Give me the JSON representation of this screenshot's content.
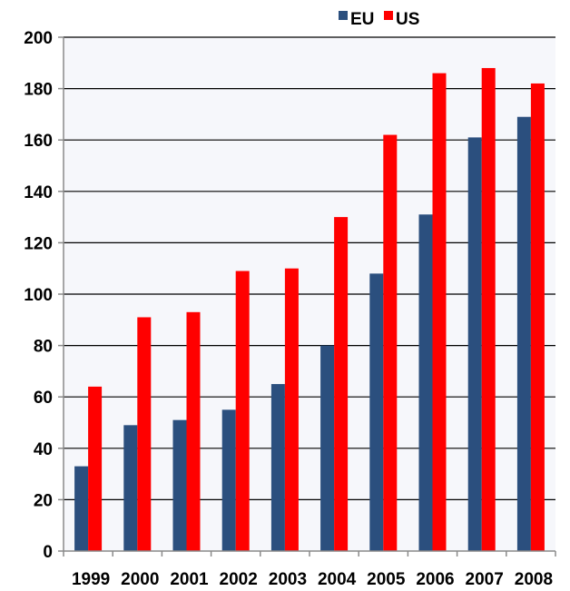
{
  "chart_data": {
    "type": "bar",
    "categories": [
      "1999",
      "2000",
      "2001",
      "2002",
      "2003",
      "2004",
      "2005",
      "2006",
      "2007",
      "2008"
    ],
    "series": [
      {
        "name": "EU",
        "color": "#2b4f7e",
        "values": [
          33,
          49,
          51,
          55,
          65,
          80,
          108,
          131,
          161,
          169
        ]
      },
      {
        "name": "US",
        "color": "#ff0000",
        "values": [
          64,
          91,
          93,
          109,
          110,
          130,
          162,
          186,
          188,
          182
        ]
      }
    ],
    "y_ticks": [
      0,
      20,
      40,
      60,
      80,
      100,
      120,
      140,
      160,
      180,
      200
    ],
    "ylim": [
      0,
      200
    ],
    "grid": true,
    "legend_position": "top-right"
  }
}
